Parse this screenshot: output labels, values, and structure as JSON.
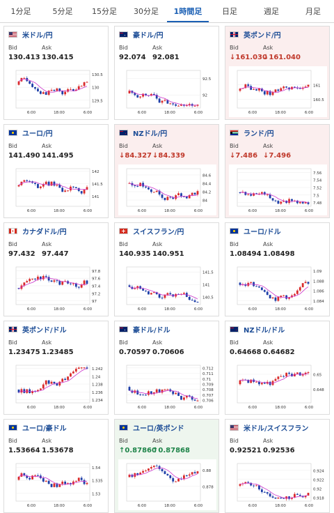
{
  "tabs": [
    {
      "label": "1分足"
    },
    {
      "label": "5分足"
    },
    {
      "label": "15分足"
    },
    {
      "label": "30分足"
    },
    {
      "label": "1時間足"
    },
    {
      "label": "日足"
    },
    {
      "label": "週足"
    },
    {
      "label": "月足"
    }
  ],
  "labels": {
    "bid": "Bid",
    "ask": "Ask"
  },
  "x_ticks": [
    "6:00",
    "18:00",
    "6:00"
  ],
  "cards": [
    {
      "pair": "米ドル/円",
      "bid": "130.413",
      "ask": "130.415",
      "trend": "",
      "flags": [
        "us",
        "jp"
      ],
      "bg": "white",
      "chart_data": {
        "type": "candlestick",
        "yticks": [
          "130.5",
          "130",
          "129.5"
        ],
        "ylim": [
          129.2,
          130.65
        ]
      }
    },
    {
      "pair": "豪ドル/円",
      "bid": "92.074",
      "ask": "92.081",
      "trend": "",
      "flags": [
        "au",
        "jp"
      ],
      "bg": "white",
      "chart_data": {
        "type": "candlestick",
        "yticks": [
          "92.5",
          "92"
        ],
        "ylim": [
          91.6,
          92.75
        ]
      }
    },
    {
      "pair": "英ポンド/円",
      "bid": "161.030",
      "ask": "161.040",
      "trend": "down",
      "flags": [
        "gb",
        "jp"
      ],
      "bg": "pink",
      "chart_data": {
        "type": "candlestick",
        "yticks": [
          "161",
          "160.5"
        ],
        "ylim": [
          160.2,
          161.5
        ]
      }
    },
    {
      "pair": "ユーロ/円",
      "bid": "141.490",
      "ask": "141.495",
      "trend": "",
      "flags": [
        "eu",
        "jp"
      ],
      "bg": "white",
      "chart_data": {
        "type": "candlestick",
        "yticks": [
          "142",
          "141.5",
          "141"
        ],
        "ylim": [
          140.6,
          142.1
        ]
      }
    },
    {
      "pair": "NZドル/円",
      "bid": "84.327",
      "ask": "84.339",
      "trend": "down",
      "flags": [
        "nz",
        "jp"
      ],
      "bg": "pink",
      "chart_data": {
        "type": "candlestick",
        "yticks": [
          "84.6",
          "84.4",
          "84.2",
          "84"
        ],
        "ylim": [
          83.85,
          84.75
        ]
      }
    },
    {
      "pair": "ランド/円",
      "bid": "7.486",
      "ask": "7.496",
      "trend": "down",
      "flags": [
        "za",
        "jp"
      ],
      "bg": "pink",
      "chart_data": {
        "type": "candlestick",
        "yticks": [
          "7.56",
          "7.54",
          "7.52",
          "7.5",
          "7.48"
        ],
        "ylim": [
          7.47,
          7.57
        ]
      }
    },
    {
      "pair": "カナダドル/円",
      "bid": "97.432",
      "ask": "97.447",
      "trend": "",
      "flags": [
        "ca",
        "jp"
      ],
      "bg": "white",
      "chart_data": {
        "type": "candlestick",
        "yticks": [
          "97.8",
          "97.6",
          "97.4",
          "97.2",
          "97"
        ],
        "ylim": [
          96.9,
          97.9
        ]
      }
    },
    {
      "pair": "スイスフラン/円",
      "bid": "140.935",
      "ask": "140.951",
      "trend": "",
      "flags": [
        "ch",
        "jp"
      ],
      "bg": "white",
      "chart_data": {
        "type": "candlestick",
        "yticks": [
          "141.5",
          "141",
          "140.5"
        ],
        "ylim": [
          140.2,
          141.7
        ]
      }
    },
    {
      "pair": "ユーロ/ドル",
      "bid": "1.08494",
      "ask": "1.08498",
      "trend": "",
      "flags": [
        "eu",
        "us"
      ],
      "bg": "white",
      "chart_data": {
        "type": "candlestick",
        "yticks": [
          "1.09",
          "1.088",
          "1.086",
          "1.084"
        ],
        "ylim": [
          1.0832,
          1.0908
        ]
      }
    },
    {
      "pair": "英ポンド/ドル",
      "bid": "1.23475",
      "ask": "1.23485",
      "trend": "",
      "flags": [
        "gb",
        "us"
      ],
      "bg": "white",
      "chart_data": {
        "type": "candlestick",
        "yticks": [
          "1.242",
          "1.24",
          "1.238",
          "1.236",
          "1.234"
        ],
        "ylim": [
          1.2332,
          1.2428
        ]
      }
    },
    {
      "pair": "豪ドル/ドル",
      "bid": "0.70597",
      "ask": "0.70606",
      "trend": "",
      "flags": [
        "au",
        "us"
      ],
      "bg": "white",
      "chart_data": {
        "type": "candlestick",
        "yticks": [
          "0.712",
          "0.711",
          "0.71",
          "0.709",
          "0.708",
          "0.707",
          "0.706"
        ],
        "ylim": [
          0.7055,
          0.7125
        ]
      }
    },
    {
      "pair": "NZドル/ドル",
      "bid": "0.64668",
      "ask": "0.64682",
      "trend": "",
      "flags": [
        "nz",
        "us"
      ],
      "bg": "white",
      "chart_data": {
        "type": "candlestick",
        "yticks": [
          "0.65",
          "0.648"
        ],
        "ylim": [
          0.6462,
          0.6512
        ]
      }
    },
    {
      "pair": "ユーロ/豪ドル",
      "bid": "1.53664",
      "ask": "1.53678",
      "trend": "",
      "flags": [
        "eu",
        "au"
      ],
      "bg": "white",
      "chart_data": {
        "type": "candlestick",
        "yticks": [
          "1.54",
          "1.535",
          "1.53"
        ],
        "ylim": [
          1.527,
          1.5415
        ]
      }
    },
    {
      "pair": "ユーロ/英ポンド",
      "bid": "0.87860",
      "ask": "0.87868",
      "trend": "up",
      "flags": [
        "eu",
        "gb"
      ],
      "bg": "green",
      "chart_data": {
        "type": "candlestick",
        "yticks": [
          "0.88",
          "0.878"
        ],
        "ylim": [
          0.8762,
          0.8808
        ]
      }
    },
    {
      "pair": "米ドル/スイスフラン",
      "bid": "0.92521",
      "ask": "0.92536",
      "trend": "",
      "flags": [
        "us",
        "ch"
      ],
      "bg": "white",
      "chart_data": {
        "type": "candlestick",
        "yticks": [
          "0.924",
          "0.922",
          "0.92",
          "0.918"
        ],
        "ylim": [
          0.9172,
          0.9255
        ]
      }
    }
  ],
  "colors": {
    "up_candle": "#d92b2b",
    "down_candle": "#1f3fa8",
    "ma_line": "#cc33cc",
    "accent": "#1a5fb4",
    "down_text": "#c0392b",
    "up_text": "#1e8449"
  }
}
